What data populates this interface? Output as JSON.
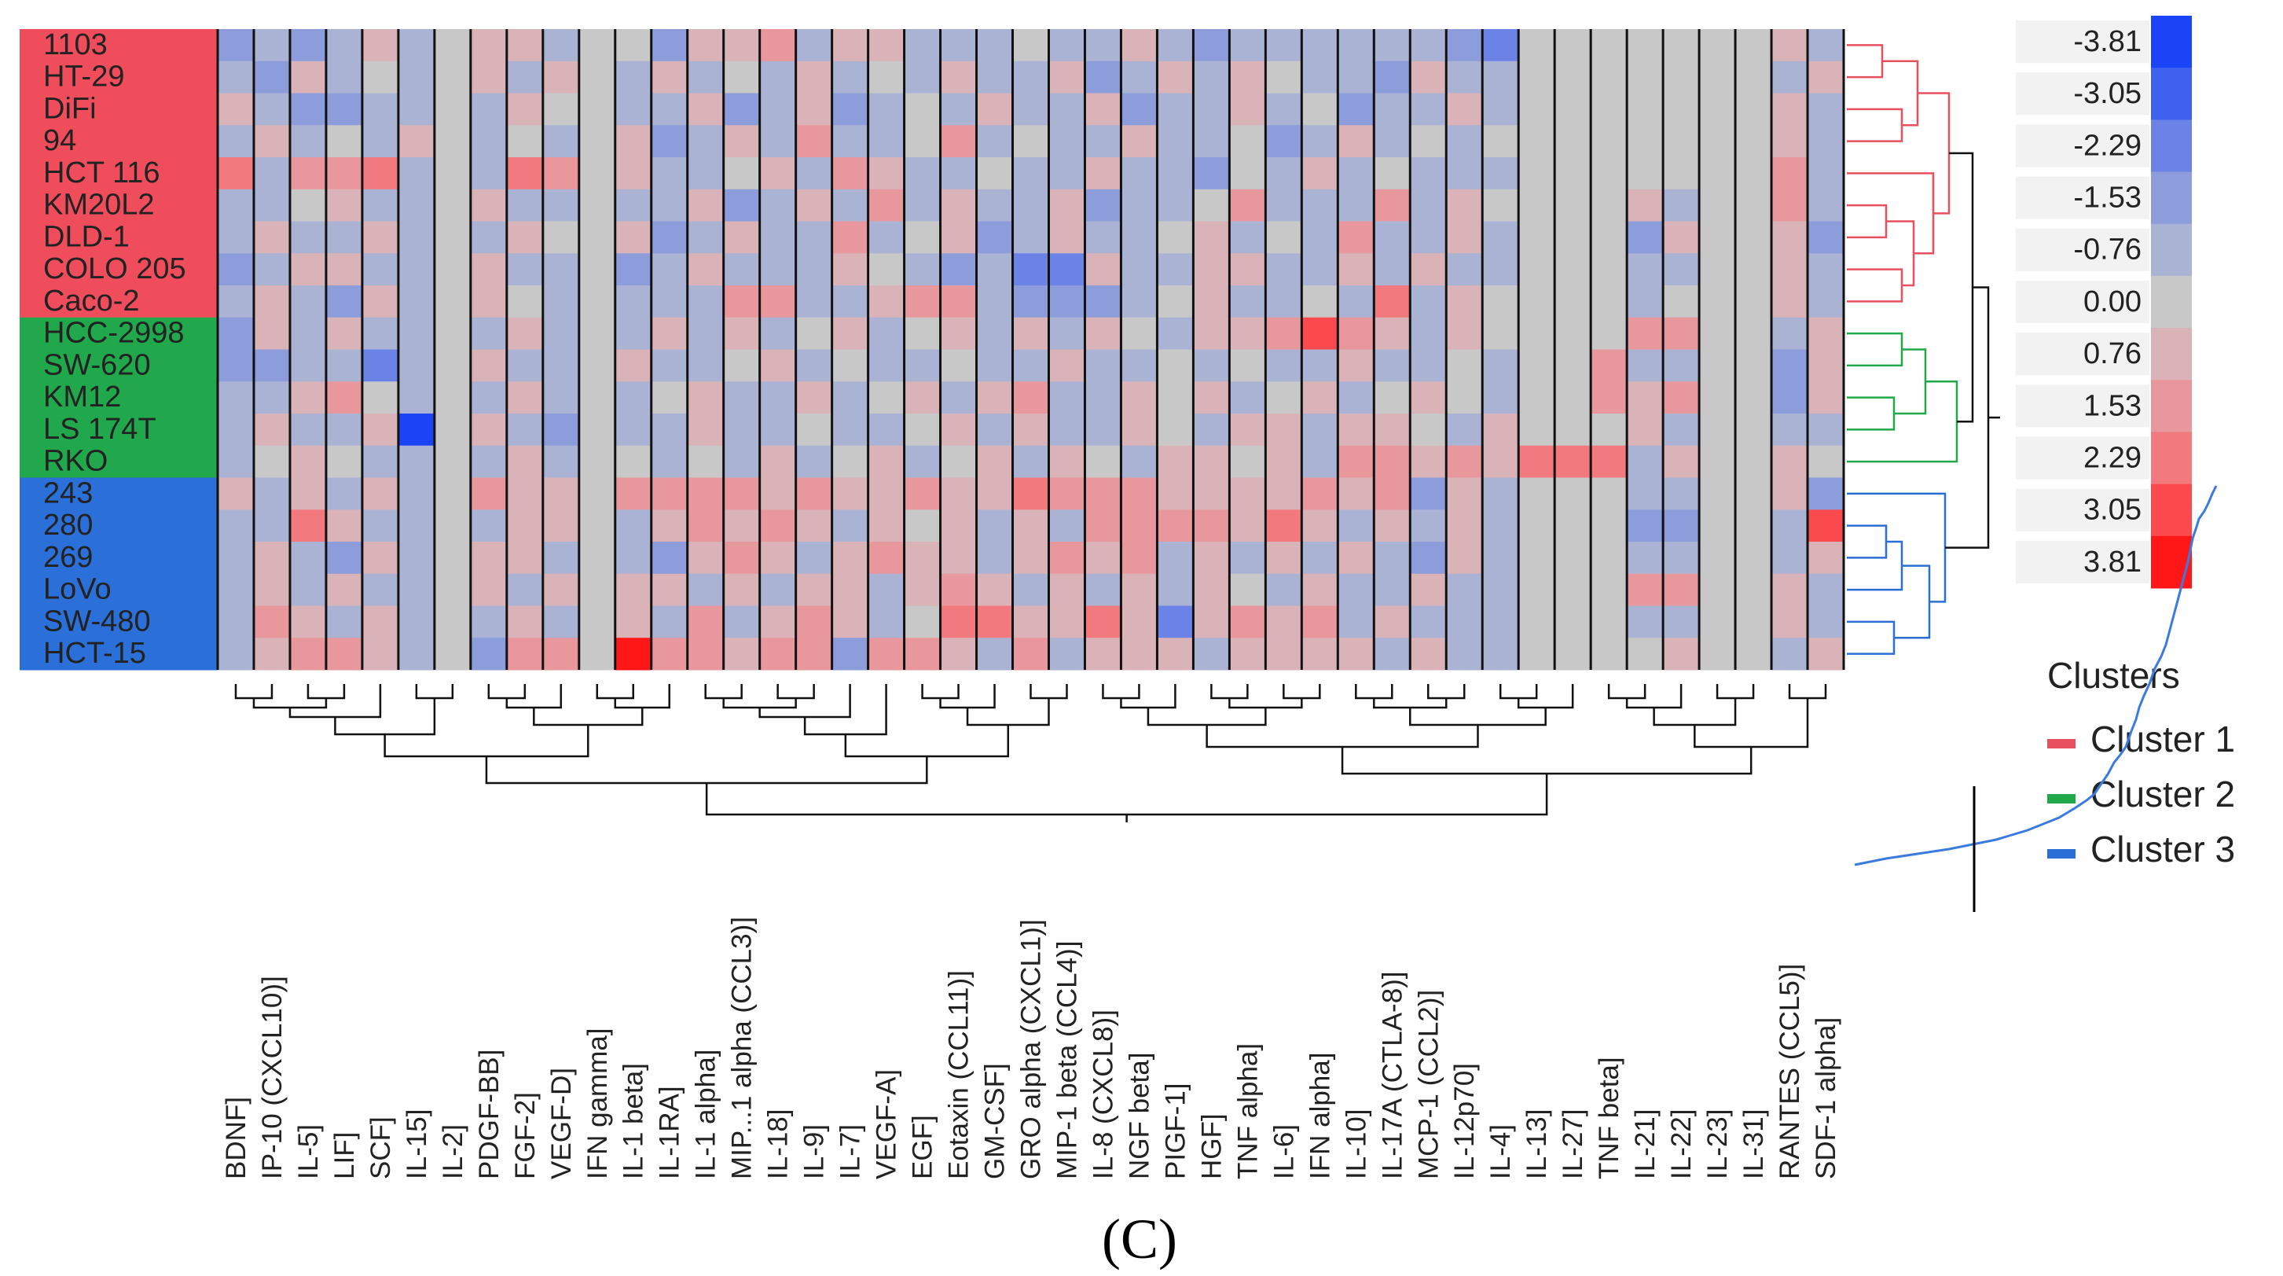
{
  "chart_data": {
    "type": "heatmap",
    "title": "",
    "panel_label": "(C)",
    "rows": [
      "1103",
      "HT-29",
      "DiFi",
      "94",
      "HCT 116",
      "KM20L2",
      "DLD-1",
      "COLO 205",
      "Caco-2",
      "HCC-2998",
      "SW-620",
      "KM12",
      "LS 174T",
      "RKO",
      "243",
      "280",
      "269",
      "LoVo",
      "SW-480",
      "HCT-15"
    ],
    "row_clusters": [
      1,
      1,
      1,
      1,
      1,
      1,
      1,
      1,
      1,
      2,
      2,
      2,
      2,
      2,
      3,
      3,
      3,
      3,
      3,
      3
    ],
    "columns": [
      "BDNF]",
      "IP-10 (CXCL10)]",
      "IL-5]",
      "LIF]",
      "SCF]",
      "IL-15]",
      "IL-2]",
      "PDGF-BB]",
      "FGF-2]",
      "VEGF-D]",
      "IFN gamma]",
      "IL-1 beta]",
      "IL-1RA]",
      "IL-1 alpha]",
      "MIP...1 alpha (CCL3)]",
      "IL-18]",
      "IL-9]",
      "IL-7]",
      "VEGF-A]",
      "EGF]",
      "Eotaxin (CCL11)]",
      "GM-CSF]",
      "GRO alpha (CXCL1)]",
      "MIP-1 beta (CCL4)]",
      "IL-8 (CXCL8)]",
      "NGF beta]",
      "PIGF-1]",
      "HGF]",
      "TNF alpha]",
      "IL-6]",
      "IFN alpha]",
      "IL-10]",
      "IL-17A (CTLA-8)]",
      "MCP-1 (CCL2)]",
      "IL-12p70]",
      "IL-4]",
      "IL-13]",
      "IL-27]",
      "TNF beta]",
      "IL-21]",
      "IL-22]",
      "IL-23]",
      "IL-31]",
      "RANTES (CCL5)]",
      "SDF-1 alpha]"
    ],
    "values": [
      [
        -1.53,
        -0.76,
        -1.53,
        -0.76,
        0.76,
        -0.76,
        0.0,
        0.76,
        0.76,
        -0.76,
        0.0,
        0.0,
        -1.53,
        0.76,
        0.76,
        1.53,
        -0.76,
        0.76,
        0.76,
        -0.76,
        -0.76,
        -0.76,
        0.0,
        -0.76,
        -0.76,
        0.76,
        -0.76,
        -1.53,
        -0.76,
        -0.76,
        -0.76,
        -0.76,
        -0.76,
        -0.76,
        -1.53,
        -2.29,
        0.0,
        0.0,
        0.0,
        0.0,
        0.0,
        0.0,
        0.0,
        0.76,
        -0.76
      ],
      [
        -0.76,
        -1.53,
        0.76,
        -0.76,
        0.0,
        -0.76,
        0.0,
        0.76,
        -0.76,
        0.76,
        0.0,
        -0.76,
        0.76,
        -0.76,
        0.0,
        -0.76,
        0.76,
        -0.76,
        0.0,
        -0.76,
        0.76,
        -0.76,
        -0.76,
        0.76,
        -1.53,
        -0.76,
        0.76,
        -0.76,
        0.76,
        0.0,
        -0.76,
        -0.76,
        -1.53,
        0.76,
        -0.76,
        -0.76,
        0.0,
        0.0,
        0.0,
        0.0,
        0.0,
        0.0,
        0.0,
        -0.76,
        0.76
      ],
      [
        0.76,
        -0.76,
        -1.53,
        -1.53,
        -0.76,
        -0.76,
        0.0,
        -0.76,
        0.76,
        0.0,
        0.0,
        -0.76,
        -0.76,
        0.76,
        -1.53,
        -0.76,
        0.76,
        -1.53,
        -0.76,
        0.0,
        -0.76,
        0.76,
        -0.76,
        -0.76,
        0.76,
        -1.53,
        -0.76,
        -0.76,
        0.76,
        -0.76,
        0.0,
        -1.53,
        -0.76,
        -0.76,
        0.76,
        -0.76,
        0.0,
        0.0,
        0.0,
        0.0,
        0.0,
        0.0,
        0.0,
        0.76,
        -0.76
      ],
      [
        -0.76,
        0.76,
        -0.76,
        0.0,
        -0.76,
        0.76,
        0.0,
        -0.76,
        0.0,
        -0.76,
        0.0,
        0.76,
        -1.53,
        -0.76,
        0.76,
        -0.76,
        1.53,
        -0.76,
        -0.76,
        0.0,
        1.53,
        -0.76,
        0.0,
        -0.76,
        -0.76,
        0.76,
        -0.76,
        -0.76,
        0.0,
        -1.53,
        -0.76,
        0.76,
        -0.76,
        0.0,
        -0.76,
        0.0,
        0.0,
        0.0,
        0.0,
        0.0,
        0.0,
        0.0,
        0.0,
        0.76,
        -0.76
      ],
      [
        2.29,
        -0.76,
        1.53,
        1.53,
        2.29,
        -0.76,
        0.0,
        -0.76,
        2.29,
        1.53,
        0.0,
        0.76,
        -0.76,
        -0.76,
        0.0,
        0.76,
        -0.76,
        1.53,
        0.76,
        -0.76,
        -0.76,
        0.0,
        -0.76,
        -0.76,
        0.76,
        -0.76,
        -0.76,
        -1.53,
        0.0,
        -0.76,
        0.76,
        -0.76,
        0.0,
        -0.76,
        -0.76,
        -0.76,
        0.0,
        0.0,
        0.0,
        0.0,
        0.0,
        0.0,
        0.0,
        1.53,
        -0.76
      ],
      [
        -0.76,
        -0.76,
        0.0,
        0.76,
        -0.76,
        -0.76,
        0.0,
        0.76,
        -0.76,
        -0.76,
        0.0,
        -0.76,
        -0.76,
        0.76,
        -1.53,
        -0.76,
        0.76,
        -0.76,
        1.53,
        -0.76,
        0.76,
        -0.76,
        -0.76,
        0.76,
        -1.53,
        -0.76,
        -0.76,
        0.0,
        1.53,
        -0.76,
        -0.76,
        -0.76,
        1.53,
        -0.76,
        0.76,
        0.0,
        0.0,
        0.0,
        0.0,
        0.76,
        -0.76,
        0.0,
        0.0,
        1.53,
        -0.76
      ],
      [
        -0.76,
        0.76,
        -0.76,
        -0.76,
        0.76,
        -0.76,
        0.0,
        -0.76,
        0.76,
        0.0,
        0.0,
        0.76,
        -1.53,
        -0.76,
        0.76,
        -0.76,
        -0.76,
        1.53,
        -0.76,
        0.0,
        0.76,
        -1.53,
        -0.76,
        0.76,
        -0.76,
        -0.76,
        0.0,
        0.76,
        -0.76,
        0.0,
        -0.76,
        1.53,
        -0.76,
        -0.76,
        0.76,
        -0.76,
        0.0,
        0.0,
        0.0,
        -1.53,
        0.76,
        0.0,
        0.0,
        0.76,
        -1.53
      ],
      [
        -1.53,
        -0.76,
        0.76,
        0.76,
        -0.76,
        -0.76,
        0.0,
        0.76,
        -0.76,
        -0.76,
        0.0,
        -1.53,
        -0.76,
        0.76,
        -0.76,
        -0.76,
        -0.76,
        0.76,
        0.0,
        -0.76,
        -1.53,
        -0.76,
        -2.29,
        -2.29,
        0.76,
        -0.76,
        -0.76,
        0.76,
        0.76,
        -0.76,
        -0.76,
        0.76,
        -0.76,
        0.76,
        -0.76,
        -0.76,
        0.0,
        0.0,
        0.0,
        -0.76,
        -0.76,
        0.0,
        0.0,
        0.76,
        -0.76
      ],
      [
        -0.76,
        0.76,
        -0.76,
        -1.53,
        0.76,
        -0.76,
        0.0,
        0.76,
        0.0,
        -0.76,
        0.0,
        -0.76,
        -0.76,
        -0.76,
        1.53,
        1.53,
        -0.76,
        -0.76,
        0.76,
        1.53,
        1.53,
        -0.76,
        -1.53,
        -1.53,
        -1.53,
        -0.76,
        0.0,
        0.76,
        -0.76,
        -0.76,
        0.0,
        -0.76,
        2.29,
        -0.76,
        0.76,
        0.0,
        0.0,
        0.0,
        0.0,
        -0.76,
        0.0,
        0.0,
        0.0,
        0.76,
        -0.76
      ],
      [
        -1.53,
        0.76,
        -0.76,
        0.76,
        -0.76,
        -0.76,
        0.0,
        -0.76,
        0.76,
        -0.76,
        0.0,
        -0.76,
        0.76,
        -0.76,
        0.76,
        -0.76,
        0.0,
        0.76,
        -0.76,
        0.0,
        0.76,
        -0.76,
        0.76,
        -0.76,
        0.76,
        0.0,
        -0.76,
        0.76,
        0.76,
        1.53,
        3.05,
        1.53,
        0.76,
        -0.76,
        0.76,
        0.0,
        0.0,
        0.0,
        0.0,
        1.53,
        1.53,
        0.0,
        0.0,
        -0.76,
        0.76
      ],
      [
        -1.53,
        -1.53,
        -0.76,
        -0.76,
        -2.29,
        -0.76,
        0.0,
        0.76,
        -0.76,
        -0.76,
        0.0,
        0.76,
        -0.76,
        -0.76,
        0.0,
        0.76,
        -0.76,
        0.0,
        -0.76,
        -0.76,
        0.0,
        -0.76,
        -0.76,
        0.76,
        -0.76,
        -0.76,
        0.0,
        -0.76,
        0.0,
        -0.76,
        -0.76,
        0.76,
        -0.76,
        -0.76,
        0.0,
        -0.76,
        0.0,
        0.0,
        1.53,
        -0.76,
        -0.76,
        0.0,
        0.0,
        -1.53,
        0.76
      ],
      [
        -0.76,
        -0.76,
        0.76,
        1.53,
        0.0,
        -0.76,
        0.0,
        -0.76,
        0.76,
        -0.76,
        0.0,
        -0.76,
        0.0,
        0.76,
        -0.76,
        -0.76,
        0.76,
        -0.76,
        0.0,
        0.76,
        -0.76,
        0.76,
        1.53,
        -0.76,
        -0.76,
        0.76,
        0.0,
        0.76,
        -0.76,
        0.0,
        0.76,
        -0.76,
        0.0,
        0.76,
        0.0,
        -0.76,
        0.0,
        0.0,
        1.53,
        0.76,
        1.53,
        0.0,
        0.0,
        -1.53,
        0.76
      ],
      [
        -0.76,
        0.76,
        -0.76,
        -0.76,
        0.76,
        -3.81,
        0.0,
        0.76,
        -0.76,
        -1.53,
        0.0,
        -0.76,
        -0.76,
        0.76,
        -0.76,
        -0.76,
        0.0,
        -0.76,
        -0.76,
        0.0,
        0.76,
        -0.76,
        0.76,
        -0.76,
        -0.76,
        0.76,
        0.0,
        -0.76,
        0.76,
        0.76,
        -0.76,
        0.76,
        0.76,
        0.0,
        -0.76,
        0.76,
        0.0,
        0.0,
        0.0,
        0.76,
        -0.76,
        0.0,
        0.0,
        -0.76,
        -0.76
      ],
      [
        -0.76,
        0.0,
        0.76,
        0.0,
        -0.76,
        -0.76,
        0.0,
        -0.76,
        0.76,
        -0.76,
        0.0,
        0.0,
        -0.76,
        0.0,
        -0.76,
        0.76,
        -0.76,
        0.0,
        0.76,
        -0.76,
        0.0,
        0.76,
        -0.76,
        0.76,
        0.0,
        -0.76,
        0.76,
        0.76,
        0.0,
        0.76,
        -0.76,
        1.53,
        1.53,
        0.76,
        1.53,
        0.76,
        2.29,
        2.29,
        2.29,
        -0.76,
        0.76,
        0.0,
        0.0,
        0.76,
        0.0
      ],
      [
        0.76,
        -0.76,
        0.76,
        -0.76,
        0.76,
        -0.76,
        0.0,
        1.53,
        0.76,
        0.76,
        0.0,
        1.53,
        1.53,
        1.53,
        1.53,
        0.76,
        1.53,
        0.76,
        0.76,
        1.53,
        0.76,
        0.76,
        2.29,
        1.53,
        1.53,
        1.53,
        0.76,
        0.76,
        0.76,
        0.76,
        1.53,
        0.76,
        1.53,
        -1.53,
        0.76,
        -0.76,
        0.0,
        0.0,
        0.0,
        -0.76,
        -0.76,
        0.0,
        0.0,
        0.76,
        -1.53
      ],
      [
        -0.76,
        -0.76,
        2.29,
        0.76,
        -0.76,
        -0.76,
        0.0,
        -0.76,
        0.76,
        0.76,
        0.0,
        -0.76,
        0.76,
        1.53,
        0.76,
        1.53,
        0.76,
        -0.76,
        0.76,
        0.0,
        0.76,
        -0.76,
        0.76,
        -0.76,
        1.53,
        1.53,
        1.53,
        1.53,
        0.76,
        2.29,
        0.76,
        -0.76,
        0.76,
        -0.76,
        0.76,
        -0.76,
        0.0,
        0.0,
        0.0,
        -1.53,
        -1.53,
        0.0,
        0.0,
        -0.76,
        3.05
      ],
      [
        -0.76,
        0.76,
        -0.76,
        -1.53,
        0.76,
        -0.76,
        0.0,
        0.76,
        0.76,
        -0.76,
        0.0,
        -0.76,
        -1.53,
        0.76,
        1.53,
        0.76,
        -0.76,
        0.76,
        1.53,
        0.76,
        0.76,
        -0.76,
        0.76,
        1.53,
        0.76,
        1.53,
        -0.76,
        0.76,
        -0.76,
        0.76,
        -0.76,
        0.76,
        -0.76,
        -1.53,
        0.76,
        -0.76,
        0.0,
        0.0,
        0.0,
        -0.76,
        -0.76,
        0.0,
        0.0,
        -0.76,
        0.76
      ],
      [
        -0.76,
        0.76,
        -0.76,
        0.76,
        -0.76,
        -0.76,
        0.0,
        0.76,
        -0.76,
        0.76,
        0.0,
        0.76,
        0.76,
        -0.76,
        0.76,
        -0.76,
        0.76,
        0.76,
        -0.76,
        0.76,
        1.53,
        0.76,
        -0.76,
        0.76,
        -0.76,
        0.76,
        -0.76,
        0.76,
        0.0,
        -0.76,
        0.76,
        -0.76,
        -0.76,
        0.76,
        -0.76,
        -0.76,
        0.0,
        0.0,
        0.0,
        1.53,
        1.53,
        0.0,
        0.0,
        0.76,
        -0.76
      ],
      [
        -0.76,
        1.53,
        0.76,
        -0.76,
        0.76,
        -0.76,
        0.0,
        -0.76,
        0.76,
        -0.76,
        0.0,
        0.76,
        -0.76,
        1.53,
        -0.76,
        0.76,
        1.53,
        0.76,
        -0.76,
        0.0,
        2.29,
        2.29,
        0.76,
        0.76,
        2.29,
        0.76,
        -2.29,
        0.76,
        1.53,
        0.76,
        1.53,
        -0.76,
        0.76,
        -0.76,
        -0.76,
        -0.76,
        0.0,
        0.0,
        0.0,
        -0.76,
        -0.76,
        0.0,
        0.0,
        0.76,
        -0.76
      ],
      [
        -0.76,
        0.76,
        1.53,
        1.53,
        0.76,
        -0.76,
        0.0,
        -1.53,
        1.53,
        1.53,
        0.0,
        3.81,
        1.53,
        1.53,
        0.76,
        1.53,
        1.53,
        -1.53,
        1.53,
        1.53,
        0.76,
        -0.76,
        1.53,
        -0.76,
        0.76,
        0.76,
        0.76,
        -0.76,
        0.76,
        0.76,
        0.76,
        0.76,
        -0.76,
        0.76,
        -0.76,
        -0.76,
        0.0,
        0.0,
        0.0,
        0.0,
        0.76,
        0.0,
        0.0,
        -0.76,
        0.76
      ]
    ],
    "scale": {
      "labels": [
        "-3.81",
        "-3.05",
        "-2.29",
        "-1.53",
        "-0.76",
        "0.00",
        "0.76",
        "1.53",
        "2.29",
        "3.05",
        "3.81"
      ],
      "colors": [
        "#1a44f5",
        "#3f62ee",
        "#6b83e6",
        "#8d9ddc",
        "#abb3d4",
        "#c8c8c8",
        "#d9b3b8",
        "#e8979d",
        "#f27a7f",
        "#fa4a4e",
        "#ff1616"
      ]
    },
    "legend": {
      "title": "Clusters",
      "items": [
        {
          "label": "Cluster 1",
          "color": "#e8505f"
        },
        {
          "label": "Cluster 2",
          "color": "#20a84a"
        },
        {
          "label": "Cluster 3",
          "color": "#2a6fd6"
        }
      ]
    },
    "cluster_colors": {
      "1": "#ef4d5c",
      "2": "#21a84c",
      "3": "#2b6fd8"
    },
    "dendro_colors": {
      "1": "#e8505f",
      "2": "#20a84a",
      "3": "#2a6fd6"
    },
    "grid": false
  }
}
